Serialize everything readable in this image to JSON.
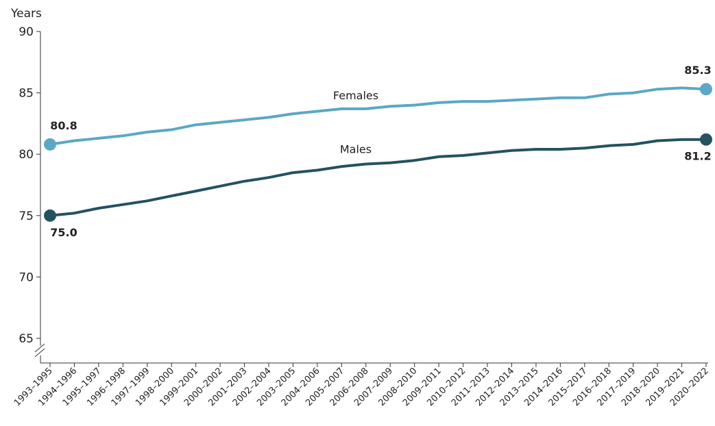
{
  "chart_data": {
    "type": "line",
    "title": "",
    "xlabel": "",
    "ylabel": "Years",
    "ylim": [
      65,
      90
    ],
    "yticks": [
      65,
      70,
      75,
      80,
      85,
      90
    ],
    "axis_break": true,
    "grid": false,
    "legend": "none (series labelled directly on lines)",
    "categories": [
      "1993–1995",
      "1994–1996",
      "1995–1997",
      "1996–1998",
      "1997–1999",
      "1998–2000",
      "1999–2001",
      "2000–2002",
      "2001–2003",
      "2002–2004",
      "2003–2005",
      "2004–2006",
      "2005–2007",
      "2006–2008",
      "2007–2009",
      "2008–2010",
      "2009–2011",
      "2010–2012",
      "2011–2013",
      "2012–2014",
      "2013–2015",
      "2014–2016",
      "2015–2017",
      "2016–2018",
      "2017–2019",
      "2018–2020",
      "2019–2021",
      "2020–2022"
    ],
    "series": [
      {
        "name": "Females",
        "color": "#5ba8c4",
        "values": [
          80.8,
          81.1,
          81.3,
          81.5,
          81.8,
          82.0,
          82.4,
          82.6,
          82.8,
          83.0,
          83.3,
          83.5,
          83.7,
          83.7,
          83.9,
          84.0,
          84.2,
          84.3,
          84.3,
          84.4,
          84.5,
          84.6,
          84.6,
          84.9,
          85.0,
          85.3,
          85.4,
          85.3
        ],
        "start_label": "80.8",
        "end_label": "85.3"
      },
      {
        "name": "Males",
        "color": "#245260",
        "values": [
          75.0,
          75.2,
          75.6,
          75.9,
          76.2,
          76.6,
          77.0,
          77.4,
          77.8,
          78.1,
          78.5,
          78.7,
          79.0,
          79.2,
          79.3,
          79.5,
          79.8,
          79.9,
          80.1,
          80.3,
          80.4,
          80.4,
          80.5,
          80.7,
          80.8,
          81.1,
          81.2,
          81.2
        ],
        "start_label": "75.0",
        "end_label": "81.2"
      }
    ]
  }
}
